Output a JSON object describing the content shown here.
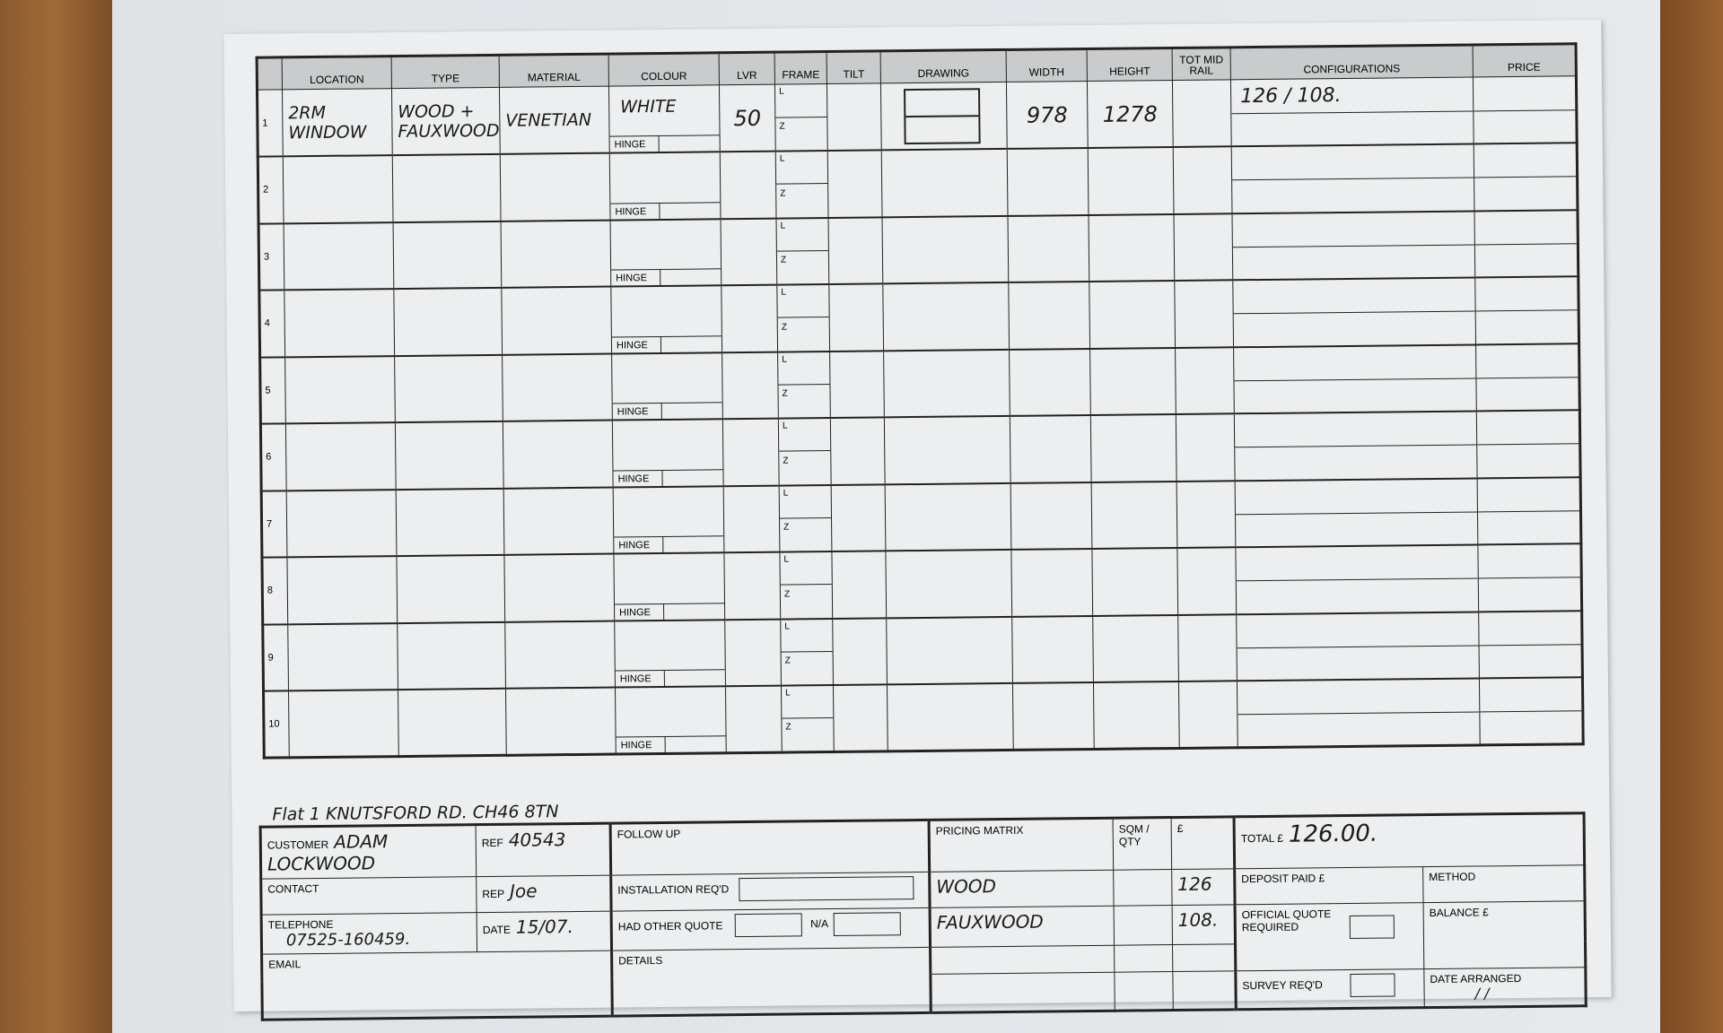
{
  "headers": {
    "location": "LOCATION",
    "type": "TYPE",
    "material": "MATERIAL",
    "colour": "COLOUR",
    "lvr": "LVR",
    "frame": "FRAME",
    "tilt": "TILT",
    "drawing": "DRAWING",
    "width": "WIDTH",
    "height": "HEIGHT",
    "tot_mid_rail": "TOT MID RAIL",
    "configurations": "CONFIGURATIONS",
    "price": "PRICE"
  },
  "labels": {
    "hinge": "HINGE",
    "frame_l": "L",
    "frame_z": "Z"
  },
  "rows": [
    {
      "num": "1",
      "location": "2RM WINDOW",
      "type": "WOOD + FAUXWOOD",
      "material": "VENETIAN",
      "colour": "WHITE",
      "lvr": "50",
      "width": "978",
      "height": "1278",
      "configurations": "126 / 108."
    },
    {
      "num": "2"
    },
    {
      "num": "3"
    },
    {
      "num": "4"
    },
    {
      "num": "5"
    },
    {
      "num": "6"
    },
    {
      "num": "7"
    },
    {
      "num": "8"
    },
    {
      "num": "9"
    },
    {
      "num": "10"
    }
  ],
  "address": "Flat 1   KNUTSFORD RD.   CH46  8TN",
  "customer": {
    "customer_label": "CUSTOMER",
    "customer": "ADAM LOCKWOOD",
    "ref_label": "REF",
    "ref": "40543",
    "contact_label": "CONTACT",
    "rep_label": "REP",
    "rep": "Joe",
    "telephone_label": "TELEPHONE",
    "telephone": "07525-160459.",
    "date_label": "DATE",
    "date": "15/07.",
    "email_label": "EMAIL"
  },
  "followup": {
    "follow_up": "FOLLOW UP",
    "installation": "INSTALLATION REQ'D",
    "had_other_quote": "HAD OTHER QUOTE",
    "na": "N/A",
    "details": "DETAILS"
  },
  "pricing": {
    "title": "PRICING MATRIX",
    "sqm_qty": "SQM / QTY",
    "currency": "£",
    "items": [
      {
        "name": "WOOD",
        "price": "126"
      },
      {
        "name": "FAUXWOOD",
        "price": "108."
      }
    ]
  },
  "totals": {
    "total_label": "TOTAL £",
    "total": "126.00.",
    "deposit_label": "DEPOSIT PAID £",
    "method_label": "METHOD",
    "official_quote": "OFFICIAL QUOTE REQUIRED",
    "balance_label": "BALANCE £",
    "survey": "SURVEY REQ'D",
    "date_arranged_label": "DATE ARRANGED",
    "date_arranged": "/   /"
  }
}
